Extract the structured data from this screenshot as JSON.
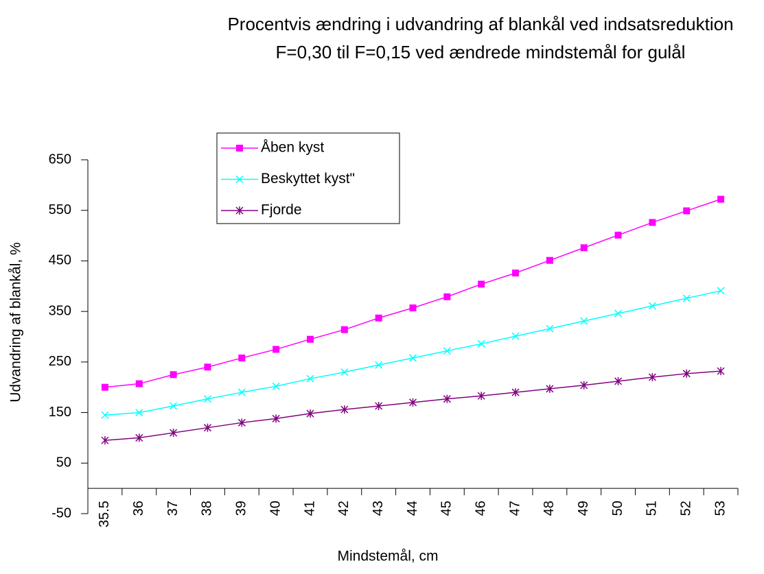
{
  "chart_data": {
    "type": "line",
    "title": [
      "Procentvis ændring i udvandring af blankål ved indsatsreduktion",
      "F=0,30 til F=0,15 ved ændrede mindstemål for gulål"
    ],
    "x_label": "Mindstemål, cm",
    "y_label": "Udvandring af blankål, %",
    "categories": [
      "35.5",
      "36",
      "37",
      "38",
      "39",
      "40",
      "41",
      "42",
      "43",
      "44",
      "45",
      "46",
      "47",
      "48",
      "49",
      "50",
      "51",
      "52",
      "53"
    ],
    "series": [
      {
        "name": "Åben kyst",
        "color": "#ff00ff",
        "marker": "square",
        "values": [
          200,
          207,
          225,
          240,
          258,
          275,
          295,
          314,
          337,
          357,
          379,
          404,
          426,
          451,
          476,
          501,
          526,
          549,
          572
        ]
      },
      {
        "name": "Beskyttet kyst\"",
        "color": "#00ffff",
        "marker": "x",
        "values": [
          145,
          150,
          163,
          177,
          190,
          202,
          217,
          230,
          244,
          258,
          272,
          286,
          301,
          316,
          331,
          346,
          361,
          376,
          391
        ]
      },
      {
        "name": "Fjorde",
        "color": "#800080",
        "marker": "asterisk",
        "values": [
          95,
          100,
          110,
          120,
          130,
          138,
          148,
          156,
          163,
          170,
          177,
          183,
          190,
          197,
          204,
          212,
          220,
          227,
          232
        ]
      }
    ],
    "ylim": [
      -50,
      650
    ],
    "yticks": [
      -50,
      50,
      150,
      250,
      350,
      450,
      550,
      650
    ],
    "grid": false,
    "legend": "top-left"
  }
}
